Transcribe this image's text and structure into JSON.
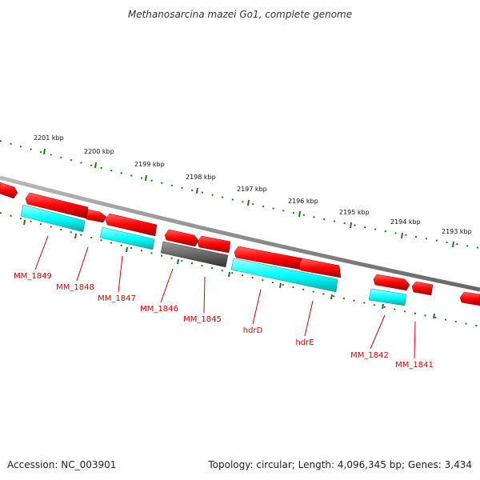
{
  "title": "Methanosarcina mazei Go1, complete genome",
  "footer": {
    "accession": "Accession: NC_003901",
    "topology": "Topology: circular; Length: 4,096,345 bp; Genes: 3,434"
  },
  "colors": {
    "background": "#ffffff",
    "forward_gene": "#ff0000",
    "reverse_gene": "#00e5ee",
    "other_gene": "#555555",
    "backbone": "#808080",
    "scale_ticks": "#1a7a1a",
    "gene_label": "#e00000"
  },
  "scale_labels": [
    "2201 kbp",
    "2200 kbp",
    "2199 kbp",
    "2198 kbp",
    "2197 kbp",
    "2196 kbp",
    "2195 kbp",
    "2194 kbp",
    "2193 kbp"
  ],
  "gene_labels": [
    "MM_1849",
    "MM_1848",
    "MM_1847",
    "MM_1846",
    "MM_1845",
    "hdrD",
    "hdrE",
    "MM_1842",
    "MM_1841"
  ]
}
